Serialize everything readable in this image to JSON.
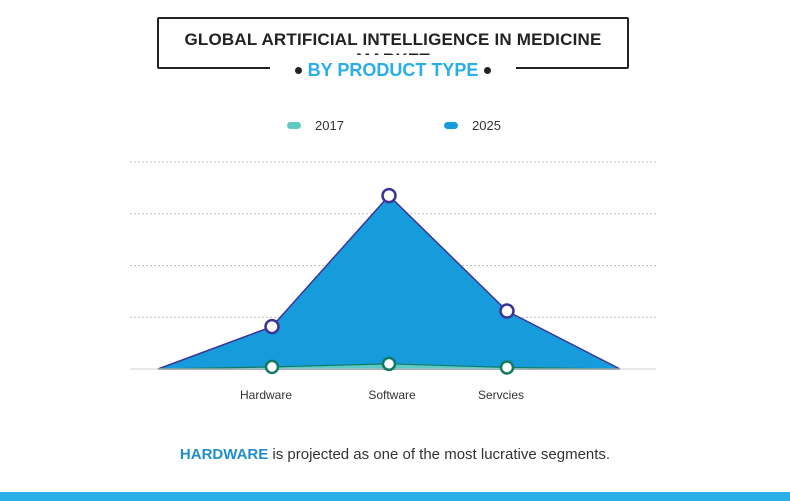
{
  "title": "GLOBAL ARTIFICIAL INTELLIGENCE IN MEDICINE MARKET",
  "subtitle": "BY PRODUCT TYPE",
  "footnote": {
    "highlight": "HARDWARE",
    "text": " is projected as one of the most lucrative segments."
  },
  "colors": {
    "series_2017": "#5ccbc4",
    "series_2025": "#169cdb",
    "outline_2025": "#3b3498",
    "outline_2017": "#137a62",
    "accent": "#29aee8"
  },
  "chart_data": {
    "type": "area",
    "categories": [
      "Hardware",
      "Software",
      "Servcies"
    ],
    "series": [
      {
        "name": "2017",
        "values": [
          0.4,
          1.0,
          0.3
        ]
      },
      {
        "name": "2025",
        "values": [
          8.2,
          33.5,
          11.2
        ]
      }
    ],
    "ylim": [
      0,
      40
    ],
    "grid": true,
    "legend_position": "top"
  }
}
